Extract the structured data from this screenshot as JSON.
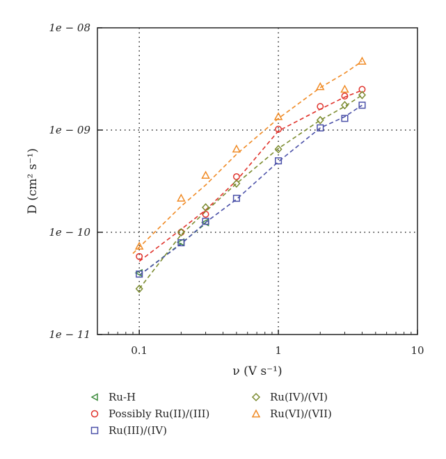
{
  "chart_data": {
    "type": "scatter",
    "x_scale": "log",
    "y_scale": "log",
    "xlim": [
      0.05,
      10
    ],
    "ylim": [
      1e-11,
      1e-08
    ],
    "x_ticks": [
      0.1,
      1,
      10
    ],
    "x_tick_labels": [
      "0.1",
      "1",
      "10"
    ],
    "y_ticks": [
      1e-11,
      1e-10,
      1e-09,
      1e-08
    ],
    "y_tick_labels": [
      "1e − 11",
      "1e − 10",
      "1e − 09",
      "1e − 08"
    ],
    "grid_lines_x": [
      0.1,
      1
    ],
    "grid_lines_y": [
      1e-10,
      1e-09
    ],
    "xlabel": "ν (V s⁻¹)",
    "ylabel": "D (cm² s⁻¹)",
    "legend_placement": "bottom",
    "series": [
      {
        "name": "Ru-H",
        "marker": "triangle-left",
        "color": "#3a8a3a",
        "points": [
          [
            0.1,
            4e-11
          ],
          [
            0.2,
            8e-11
          ],
          [
            0.3,
            1.25e-10
          ]
        ],
        "fit": [
          [
            0.1,
            3.8e-11
          ],
          [
            0.2,
            7.8e-11
          ],
          [
            0.3,
            1.22e-10
          ]
        ]
      },
      {
        "name": "Possibly Ru(II)/(III)",
        "marker": "circle",
        "color": "#e0322b",
        "points": [
          [
            0.1,
            5.8e-11
          ],
          [
            0.2,
            1e-10
          ],
          [
            0.3,
            1.5e-10
          ],
          [
            0.5,
            3.5e-10
          ],
          [
            1,
            1.02e-09
          ],
          [
            2,
            1.7e-09
          ],
          [
            3,
            2.15e-09
          ],
          [
            4,
            2.5e-09
          ]
        ],
        "fit": [
          [
            0.1,
            5.2e-11
          ],
          [
            0.2,
            1.07e-10
          ],
          [
            0.3,
            1.65e-10
          ],
          [
            0.5,
            3.2e-10
          ],
          [
            1,
            9.8e-10
          ],
          [
            2,
            1.6e-09
          ],
          [
            3,
            2.1e-09
          ],
          [
            4,
            2.45e-09
          ]
        ]
      },
      {
        "name": "Ru(III)/(IV)",
        "marker": "square",
        "color": "#4a50a8",
        "points": [
          [
            0.1,
            3.9e-11
          ],
          [
            0.2,
            7.9e-11
          ],
          [
            0.3,
            1.28e-10
          ],
          [
            0.5,
            2.15e-10
          ],
          [
            1,
            5e-10
          ],
          [
            2,
            1.05e-09
          ],
          [
            3,
            1.3e-09
          ],
          [
            4,
            1.75e-09
          ]
        ],
        "fit": [
          [
            0.1,
            3.8e-11
          ],
          [
            0.2,
            7.7e-11
          ],
          [
            0.3,
            1.25e-10
          ],
          [
            0.5,
            2.1e-10
          ],
          [
            1,
            4.9e-10
          ],
          [
            2,
            1.05e-09
          ],
          [
            3,
            1.35e-09
          ],
          [
            4,
            1.75e-09
          ]
        ]
      },
      {
        "name": "Ru(IV)/(VI)",
        "marker": "diamond",
        "color": "#7a8a2e",
        "points": [
          [
            0.1,
            2.8e-11
          ],
          [
            0.2,
            1e-10
          ],
          [
            0.3,
            1.75e-10
          ],
          [
            0.5,
            3e-10
          ],
          [
            1,
            6.5e-10
          ],
          [
            2,
            1.25e-09
          ],
          [
            3,
            1.75e-09
          ],
          [
            4,
            2.2e-09
          ]
        ],
        "fit": [
          [
            0.1,
            2.8e-11
          ],
          [
            0.2,
            9.5e-11
          ],
          [
            0.3,
            1.6e-10
          ],
          [
            0.5,
            3e-10
          ],
          [
            1,
            6.6e-10
          ],
          [
            2,
            1.25e-09
          ],
          [
            3,
            1.7e-09
          ],
          [
            4,
            2.2e-09
          ]
        ]
      },
      {
        "name": "Ru(VI)/(VII)",
        "marker": "triangle-up",
        "color": "#f08a24",
        "points": [
          [
            0.1,
            7.3e-11
          ],
          [
            0.2,
            2.15e-10
          ],
          [
            0.3,
            3.6e-10
          ],
          [
            0.5,
            6.5e-10
          ],
          [
            1,
            1.35e-09
          ],
          [
            2,
            2.65e-09
          ],
          [
            3,
            2.5e-09
          ],
          [
            4,
            4.7e-09
          ]
        ],
        "fit": [
          [
            0.09,
            6.2e-11
          ],
          [
            0.2,
            1.8e-10
          ],
          [
            0.3,
            2.9e-10
          ],
          [
            0.5,
            5.8e-10
          ],
          [
            1,
            1.3e-09
          ],
          [
            2,
            2.6e-09
          ],
          [
            3,
            3.6e-09
          ],
          [
            4,
            4.7e-09
          ]
        ]
      }
    ]
  },
  "legend": {
    "items": [
      {
        "label": "Ru-H",
        "marker": "triangle-left",
        "color": "#3a8a3a"
      },
      {
        "label": "Possibly Ru(II)/(III)",
        "marker": "circle",
        "color": "#e0322b"
      },
      {
        "label": "Ru(III)/(IV)",
        "marker": "square",
        "color": "#4a50a8"
      },
      {
        "label": "Ru(IV)/(VI)",
        "marker": "diamond",
        "color": "#7a8a2e"
      },
      {
        "label": "Ru(VI)/(VII)",
        "marker": "triangle-up",
        "color": "#f08a24"
      }
    ]
  }
}
